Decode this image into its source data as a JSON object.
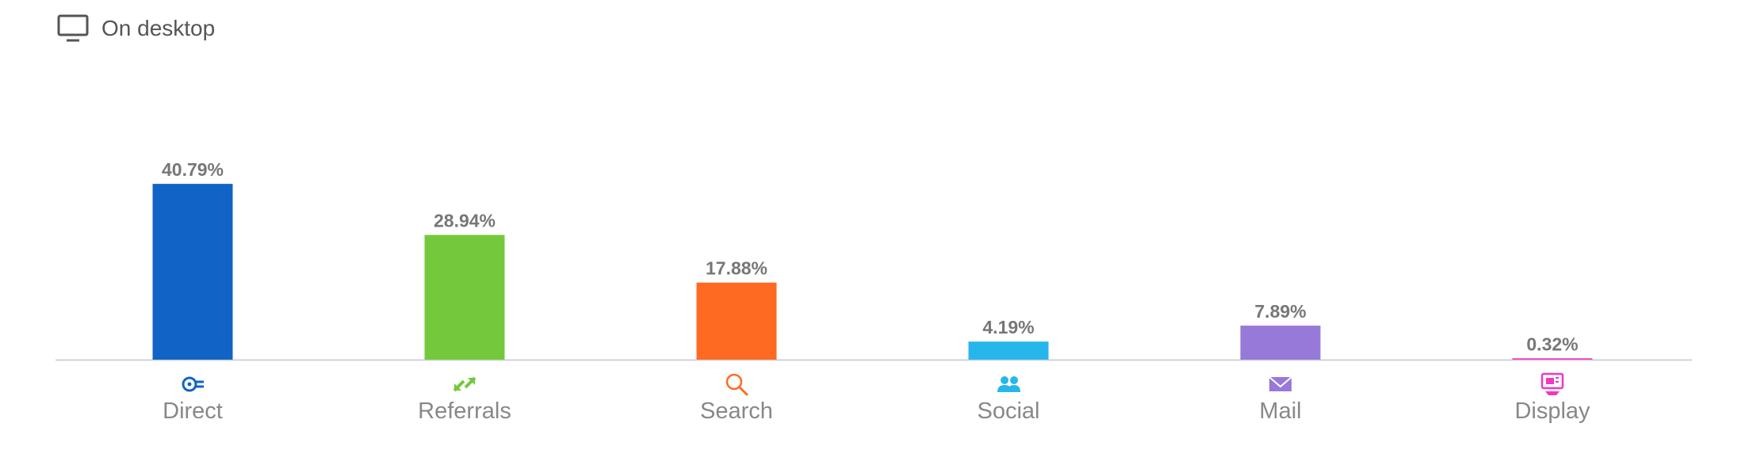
{
  "header": {
    "title": "On desktop",
    "icon": "monitor-icon"
  },
  "chart_data": {
    "type": "bar",
    "title": "",
    "xlabel": "",
    "ylabel": "",
    "ylim": [
      0,
      50
    ],
    "grid": false,
    "categories": [
      "Direct",
      "Referrals",
      "Search",
      "Social",
      "Mail",
      "Display"
    ],
    "values": [
      40.79,
      28.94,
      17.88,
      4.19,
      7.89,
      0.32
    ],
    "value_labels": [
      "40.79%",
      "28.94%",
      "17.88%",
      "4.19%",
      "7.89%",
      "0.32%"
    ],
    "icons": [
      "direct-icon",
      "referrals-icon",
      "search-icon",
      "social-icon",
      "mail-icon",
      "display-icon"
    ],
    "colors": [
      "#1263C6",
      "#74C83C",
      "#FF6A22",
      "#27B6EC",
      "#9679D9",
      "#F038C2"
    ]
  }
}
